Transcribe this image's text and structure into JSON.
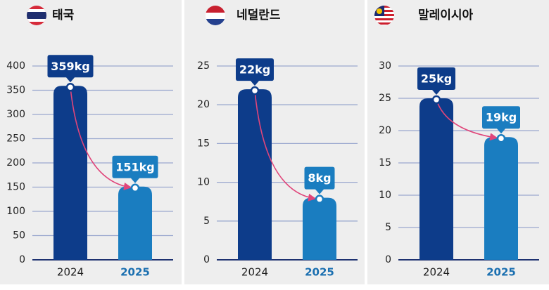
{
  "chart_data": [
    {
      "type": "bar",
      "title": "태국",
      "categories": [
        "2024",
        "2025"
      ],
      "values": [
        359,
        151
      ],
      "value_labels": [
        "359kg",
        "151kg"
      ],
      "colors": [
        "#0d3c8a",
        "#1a7dc0"
      ],
      "ylim": [
        0,
        400
      ],
      "yticks": [
        0,
        50,
        100,
        150,
        200,
        250,
        300,
        350,
        400
      ],
      "grid": true
    },
    {
      "type": "bar",
      "title": "네덜란드",
      "categories": [
        "2024",
        "2025"
      ],
      "values": [
        22,
        8
      ],
      "value_labels": [
        "22kg",
        "8kg"
      ],
      "colors": [
        "#0d3c8a",
        "#1a7dc0"
      ],
      "ylim": [
        0,
        25
      ],
      "yticks": [
        0,
        5,
        10,
        15,
        20,
        25
      ],
      "grid": true
    },
    {
      "type": "bar",
      "title": "말레이시아",
      "categories": [
        "2024",
        "2025"
      ],
      "values": [
        25,
        19
      ],
      "value_labels": [
        "25kg",
        "19kg"
      ],
      "colors": [
        "#0d3c8a",
        "#1a7dc0"
      ],
      "ylim": [
        0,
        30
      ],
      "yticks": [
        0,
        5,
        10,
        15,
        20,
        25,
        30
      ],
      "grid": true
    }
  ]
}
